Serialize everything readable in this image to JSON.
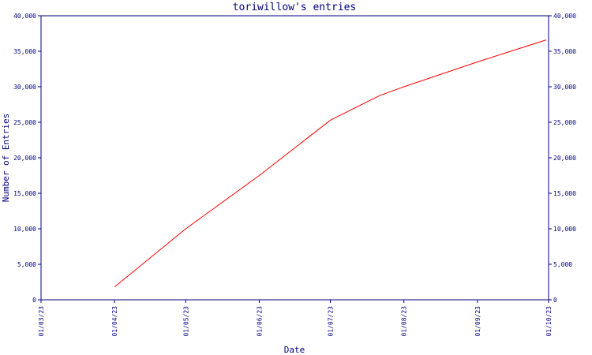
{
  "chart_data": {
    "type": "line",
    "title": "toriwillow's entries",
    "xlabel": "Date",
    "ylabel": "Number of Entries",
    "x_tick_labels": [
      "01/03/23",
      "01/04/23",
      "01/05/23",
      "01/06/23",
      "01/07/23",
      "01/08/23",
      "01/09/23",
      "01/10/23"
    ],
    "y_tick_labels": [
      "0",
      "5,000",
      "10,000",
      "15,000",
      "20,000",
      "25,000",
      "30,000",
      "35,000",
      "40,000"
    ],
    "y_tick_values": [
      0,
      5000,
      10000,
      15000,
      20000,
      25000,
      30000,
      35000,
      40000
    ],
    "xlim": [
      "2023-03-01",
      "2023-10-01"
    ],
    "ylim": [
      0,
      40000
    ],
    "grid": false,
    "axes_color": "#000080",
    "series": [
      {
        "color": "#ff0000",
        "points": [
          {
            "x": "2023-04-01",
            "y": 1800
          },
          {
            "x": "2023-05-01",
            "y": 10000
          },
          {
            "x": "2023-06-01",
            "y": 17500
          },
          {
            "x": "2023-07-01",
            "y": 25300
          },
          {
            "x": "2023-07-22",
            "y": 28800
          },
          {
            "x": "2023-08-01",
            "y": 30000
          },
          {
            "x": "2023-09-01",
            "y": 33500
          },
          {
            "x": "2023-09-15",
            "y": 35000
          },
          {
            "x": "2023-09-30",
            "y": 36600
          }
        ]
      }
    ]
  }
}
